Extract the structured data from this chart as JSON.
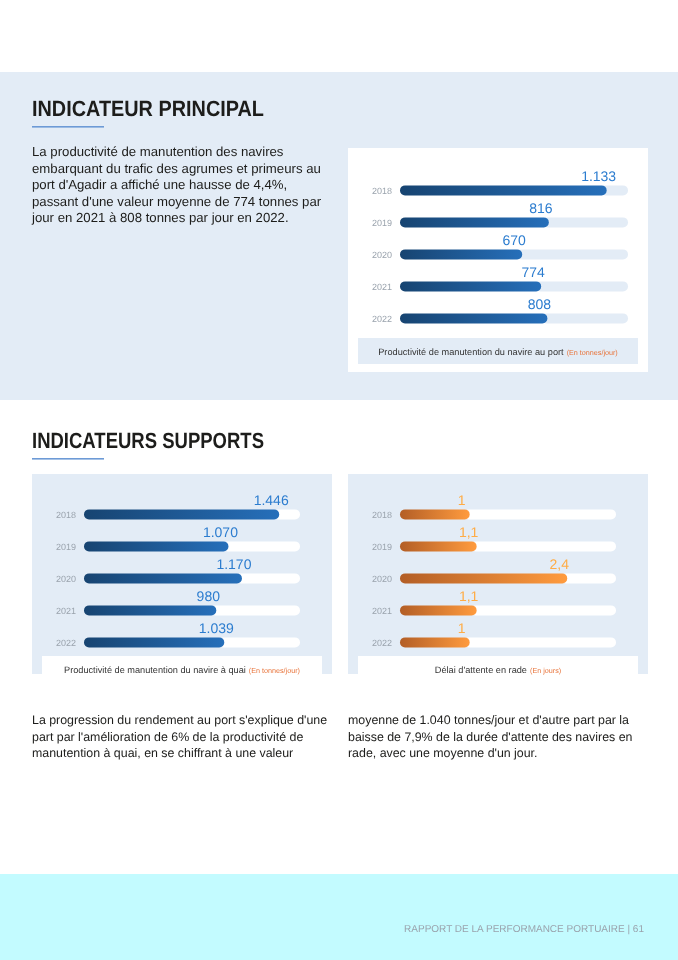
{
  "chart_data": [
    {
      "type": "bar",
      "orientation": "horizontal",
      "categories": [
        "2018",
        "2019",
        "2020",
        "2021",
        "2022"
      ],
      "xlim": [
        0,
        1250
      ],
      "tick_labels": "y",
      "series": [
        {
          "color": "#1f5a96",
          "values": [
            1133,
            816,
            670,
            774,
            808
          ],
          "value_labels": [
            "1.133",
            "816",
            "670",
            "774",
            "808"
          ]
        }
      ],
      "xlabel": "Productivité de manutention du navire au port (En tonnes/jour)",
      "annotations": [
        "INDICATEUR PRINCIPAL",
        "La productivité de manutention des navires embarquant du trafic des agrumes et primeurs au port d'Agadir a affiché une hausse de 4,4%, passant d'une valeur moyenne de 774 tonnes par jour en 2021 à 808 tonnes par jour en 2022."
      ]
    },
    {
      "type": "bar",
      "orientation": "horizontal",
      "categories": [
        "2018",
        "2019",
        "2020",
        "2021",
        "2022"
      ],
      "xlim": [
        0,
        1600
      ],
      "tick_labels": "y",
      "series": [
        {
          "color": "#1f5a96",
          "values": [
            1446,
            1070,
            1170,
            980,
            1039
          ],
          "value_labels": [
            "1.446",
            "1.070",
            "1.170",
            "980",
            "1.039"
          ]
        }
      ],
      "xlabel": "Productivité de manutention du navire à quai (En tonnes/jour)",
      "annotations": [
        "INDICATEURS SUPPORTS",
        "La progression du rendement au port s'explique d'une part par l'amélioration de 6% de la productivité de manutention à quai, en se chiffrant à une valeur moyenne de 1.040 tonnes/jour et d'autre part par la baisse de 7,9% de la durée d'attente des navires en rade, avec une moyenne d'un jour."
      ]
    },
    {
      "type": "bar",
      "orientation": "horizontal",
      "categories": [
        "2018",
        "2019",
        "2020",
        "2021",
        "2022"
      ],
      "xlim": [
        0,
        3.1
      ],
      "tick_labels": "y",
      "series": [
        {
          "color": "#ee7d32",
          "values": [
            1,
            1.1,
            2.4,
            1.1,
            1
          ],
          "value_labels": [
            "1",
            "1,1",
            "2,4",
            "1,1",
            "1"
          ]
        }
      ],
      "xlabel": "Délai d'attente en rade (En jours)",
      "annotations": [
        "RAPPORT DE LA PERFORMANCE PORTUAIRE | 61"
      ]
    }
  ]
}
